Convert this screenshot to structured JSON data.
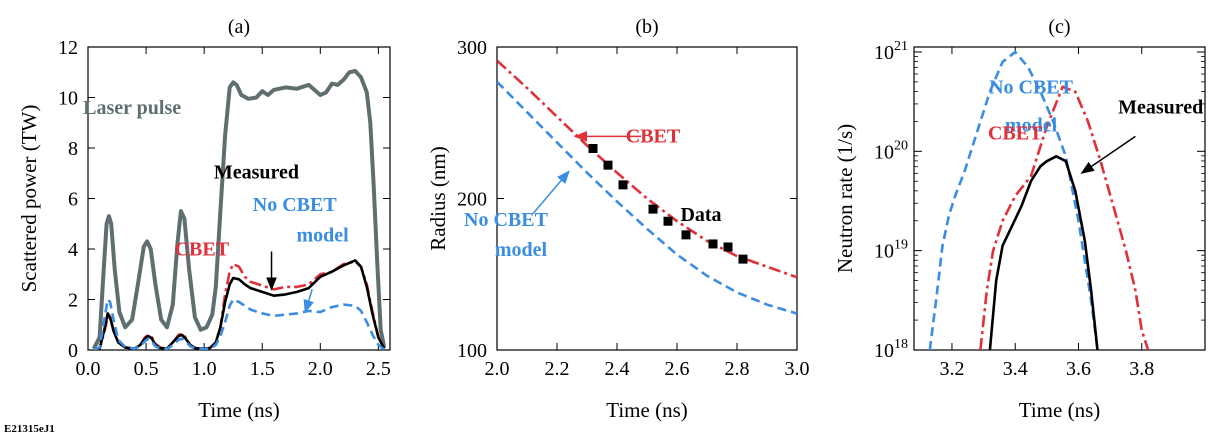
{
  "figure_id": "E21315eJ1",
  "colors": {
    "gray": "#5f6f6f",
    "red": "#e0303a",
    "blue": "#3a8de0",
    "black": "#000000"
  },
  "chart_data": [
    {
      "type": "line",
      "panel_label": "(a)",
      "xlabel": "Time (ns)",
      "ylabel": "Scattered power (TW)",
      "xlim": [
        0.0,
        2.6
      ],
      "ylim": [
        0,
        12
      ],
      "xticks": [
        "0.0",
        "0.5",
        "1.0",
        "1.5",
        "2.0",
        "2.5"
      ],
      "yticks": [
        "0",
        "2",
        "4",
        "6",
        "8",
        "10",
        "12"
      ],
      "series": [
        {
          "name": "Laser pulse",
          "color": "gray",
          "style": "solid",
          "x": [
            0.05,
            0.1,
            0.13,
            0.16,
            0.18,
            0.2,
            0.23,
            0.27,
            0.32,
            0.38,
            0.43,
            0.48,
            0.51,
            0.54,
            0.58,
            0.63,
            0.68,
            0.73,
            0.77,
            0.8,
            0.83,
            0.87,
            0.92,
            0.97,
            1.02,
            1.07,
            1.1,
            1.14,
            1.18,
            1.22,
            1.25,
            1.28,
            1.32,
            1.38,
            1.45,
            1.5,
            1.55,
            1.6,
            1.7,
            1.8,
            1.9,
            2.0,
            2.05,
            2.1,
            2.15,
            2.2,
            2.25,
            2.3,
            2.35,
            2.4,
            2.43,
            2.46,
            2.49,
            2.52,
            2.55
          ],
          "y": [
            0.05,
            0.5,
            2.8,
            5.0,
            5.3,
            5.0,
            3.2,
            1.5,
            0.9,
            1.2,
            2.6,
            4.1,
            4.3,
            4.0,
            2.6,
            1.2,
            0.9,
            1.8,
            4.2,
            5.5,
            5.2,
            3.2,
            1.3,
            0.8,
            0.9,
            1.4,
            2.5,
            5.5,
            8.5,
            10.4,
            10.6,
            10.5,
            10.1,
            9.95,
            10.0,
            10.25,
            10.1,
            10.3,
            10.4,
            10.35,
            10.5,
            10.1,
            10.2,
            10.55,
            10.5,
            10.7,
            11.0,
            11.05,
            10.8,
            10.2,
            9.0,
            6.5,
            3.5,
            0.8,
            0.1
          ]
        },
        {
          "name": "CBET",
          "color": "red",
          "style": "dash-dot",
          "x": [
            0.05,
            0.1,
            0.14,
            0.17,
            0.19,
            0.22,
            0.26,
            0.32,
            0.4,
            0.45,
            0.49,
            0.52,
            0.55,
            0.58,
            0.62,
            0.68,
            0.73,
            0.78,
            0.81,
            0.84,
            0.88,
            0.92,
            0.98,
            1.05,
            1.1,
            1.14,
            1.18,
            1.22,
            1.25,
            1.3,
            1.35,
            1.4,
            1.5,
            1.6,
            1.7,
            1.8,
            1.9,
            2.0,
            2.1,
            2.2,
            2.3,
            2.35,
            2.4,
            2.45,
            2.5,
            2.55
          ],
          "y": [
            0,
            0.05,
            0.7,
            1.3,
            1.25,
            0.8,
            0.3,
            0.1,
            0.05,
            0.2,
            0.5,
            0.6,
            0.5,
            0.25,
            0.1,
            0.05,
            0.3,
            0.6,
            0.65,
            0.5,
            0.2,
            0.08,
            0.05,
            0.08,
            0.3,
            0.9,
            2.2,
            3.1,
            3.4,
            3.3,
            2.9,
            2.7,
            2.55,
            2.4,
            2.5,
            2.5,
            2.6,
            3.0,
            3.1,
            3.4,
            3.5,
            3.3,
            2.6,
            1.5,
            0.5,
            0.05
          ]
        },
        {
          "name": "Measured",
          "color": "black",
          "style": "solid",
          "x": [
            0.05,
            0.1,
            0.14,
            0.17,
            0.19,
            0.22,
            0.26,
            0.32,
            0.4,
            0.45,
            0.49,
            0.52,
            0.55,
            0.58,
            0.62,
            0.68,
            0.73,
            0.78,
            0.81,
            0.84,
            0.88,
            0.92,
            0.98,
            1.05,
            1.1,
            1.14,
            1.18,
            1.22,
            1.25,
            1.3,
            1.35,
            1.4,
            1.5,
            1.6,
            1.7,
            1.8,
            1.9,
            2.0,
            2.1,
            2.2,
            2.3,
            2.35,
            2.4,
            2.45,
            2.5,
            2.55
          ],
          "y": [
            0,
            0.05,
            0.8,
            1.45,
            1.3,
            0.75,
            0.3,
            0.1,
            0.05,
            0.2,
            0.45,
            0.55,
            0.45,
            0.2,
            0.08,
            0.05,
            0.3,
            0.55,
            0.6,
            0.45,
            0.2,
            0.08,
            0.05,
            0.08,
            0.3,
            0.9,
            1.9,
            2.6,
            2.85,
            2.8,
            2.6,
            2.45,
            2.3,
            2.15,
            2.2,
            2.3,
            2.45,
            2.9,
            3.1,
            3.35,
            3.55,
            3.3,
            2.5,
            1.4,
            0.5,
            0.05
          ]
        },
        {
          "name": "No CBET model",
          "color": "blue",
          "style": "dashed",
          "x": [
            0.05,
            0.1,
            0.14,
            0.17,
            0.19,
            0.22,
            0.26,
            0.32,
            0.4,
            0.45,
            0.49,
            0.52,
            0.55,
            0.58,
            0.62,
            0.68,
            0.73,
            0.78,
            0.81,
            0.84,
            0.88,
            0.92,
            0.98,
            1.05,
            1.1,
            1.14,
            1.18,
            1.22,
            1.25,
            1.3,
            1.35,
            1.4,
            1.5,
            1.6,
            1.7,
            1.8,
            1.9,
            2.0,
            2.1,
            2.2,
            2.3,
            2.35,
            2.4,
            2.45,
            2.5,
            2.55
          ],
          "y": [
            0,
            0.1,
            1.2,
            2.0,
            1.9,
            1.2,
            0.4,
            0.12,
            0.05,
            0.15,
            0.35,
            0.45,
            0.35,
            0.15,
            0.06,
            0.04,
            0.2,
            0.4,
            0.45,
            0.35,
            0.15,
            0.06,
            0.04,
            0.06,
            0.2,
            0.55,
            1.1,
            1.75,
            2.0,
            1.9,
            1.75,
            1.6,
            1.45,
            1.35,
            1.4,
            1.45,
            1.55,
            1.5,
            1.7,
            1.8,
            1.75,
            1.55,
            1.1,
            0.6,
            0.2,
            0.02
          ]
        }
      ],
      "annotations": [
        {
          "text": "Laser pulse",
          "color": "gray",
          "x": 0.38,
          "y": 9.35
        },
        {
          "text": "Measured",
          "color": "black",
          "x": 1.45,
          "y": 6.8
        },
        {
          "text": "CBET",
          "color": "red",
          "x": 0.98,
          "y": 3.75
        },
        {
          "text": "No CBET",
          "color": "blue",
          "x": 1.78,
          "y": 5.5
        },
        {
          "text": "model",
          "color": "blue",
          "x": 2.02,
          "y": 4.3
        }
      ],
      "arrows": [
        {
          "color": "black",
          "from": [
            1.58,
            3.9
          ],
          "to": [
            1.58,
            2.4
          ]
        },
        {
          "color": "blue",
          "from": [
            1.93,
            2.4
          ],
          "to": [
            1.87,
            1.5
          ]
        }
      ]
    },
    {
      "type": "line",
      "panel_label": "(b)",
      "xlabel": "Time (ns)",
      "ylabel": "Radius (nm)",
      "xlim": [
        2.0,
        3.0
      ],
      "ylim": [
        100,
        300
      ],
      "xticks": [
        "2.0",
        "2.2",
        "2.4",
        "2.6",
        "2.8",
        "3.0"
      ],
      "yticks": [
        "100",
        "200",
        "300"
      ],
      "series": [
        {
          "name": "CBET",
          "color": "red",
          "style": "dash-dot",
          "x": [
            2.0,
            2.1,
            2.2,
            2.3,
            2.4,
            2.5,
            2.6,
            2.7,
            2.8,
            2.9,
            3.0
          ],
          "y": [
            291,
            273,
            254,
            235,
            217,
            200,
            185,
            172,
            162,
            155,
            148
          ]
        },
        {
          "name": "No CBET model",
          "color": "blue",
          "style": "dashed",
          "x": [
            2.0,
            2.1,
            2.2,
            2.3,
            2.4,
            2.5,
            2.6,
            2.7,
            2.8,
            2.9,
            3.0
          ],
          "y": [
            277,
            257,
            237,
            217,
            198,
            180,
            163,
            149,
            138,
            130,
            124
          ]
        },
        {
          "name": "Data",
          "color": "black",
          "style": "markers",
          "x": [
            2.32,
            2.37,
            2.42,
            2.52,
            2.57,
            2.63,
            2.72,
            2.77,
            2.82
          ],
          "y": [
            233,
            222,
            209,
            193,
            185,
            176,
            170,
            168,
            160
          ]
        }
      ],
      "annotations": [
        {
          "text": "CBET",
          "color": "red",
          "x": 2.52,
          "y": 237
        },
        {
          "text": "Data",
          "color": "black",
          "x": 2.68,
          "y": 185
        },
        {
          "text": "No CBET",
          "color": "blue",
          "x": 2.03,
          "y": 182
        },
        {
          "text": "model",
          "color": "blue",
          "x": 2.08,
          "y": 162
        }
      ],
      "arrows": [
        {
          "color": "red",
          "from": [
            2.48,
            241
          ],
          "to": [
            2.26,
            241
          ]
        },
        {
          "color": "blue",
          "from": [
            2.12,
            190
          ],
          "to": [
            2.24,
            218
          ]
        }
      ]
    },
    {
      "type": "line",
      "panel_label": "(c)",
      "xlabel": "Time (ns)",
      "ylabel": "Neutron rate (1/s)",
      "xlim": [
        3.08,
        4.0
      ],
      "ylim": [
        18,
        21.05
      ],
      "yscale": "log",
      "xticks": [
        "3.2",
        "3.4",
        "3.6",
        "3.8"
      ],
      "yticks": [
        {
          "base": "10",
          "exp": "18",
          "log": 18
        },
        {
          "base": "10",
          "exp": "19",
          "log": 19
        },
        {
          "base": "10",
          "exp": "20",
          "log": 20
        },
        {
          "base": "10",
          "exp": "21",
          "log": 21
        }
      ],
      "series": [
        {
          "name": "No CBET model",
          "color": "blue",
          "style": "dashed",
          "x": [
            3.13,
            3.15,
            3.17,
            3.19,
            3.21,
            3.24,
            3.28,
            3.32,
            3.36,
            3.4,
            3.44,
            3.48,
            3.52,
            3.56,
            3.6,
            3.64,
            3.66
          ],
          "y": [
            18.0,
            18.5,
            19.05,
            19.35,
            19.55,
            19.8,
            20.2,
            20.6,
            20.9,
            21.0,
            20.85,
            20.6,
            20.3,
            19.95,
            19.3,
            18.5,
            18.0
          ]
        },
        {
          "name": "CBET",
          "color": "red",
          "style": "dash-dot",
          "x": [
            3.29,
            3.31,
            3.33,
            3.36,
            3.4,
            3.45,
            3.5,
            3.55,
            3.59,
            3.63,
            3.67,
            3.71,
            3.75,
            3.78,
            3.8,
            3.82
          ],
          "y": [
            18.0,
            18.6,
            19.0,
            19.3,
            19.55,
            19.75,
            20.25,
            20.65,
            20.6,
            20.3,
            19.9,
            19.45,
            19.0,
            18.6,
            18.2,
            18.0
          ]
        },
        {
          "name": "Measured",
          "color": "black",
          "style": "solid",
          "x": [
            3.32,
            3.34,
            3.36,
            3.39,
            3.42,
            3.45,
            3.48,
            3.5,
            3.53,
            3.56,
            3.59,
            3.62,
            3.64,
            3.66
          ],
          "y": [
            18.0,
            18.7,
            19.05,
            19.25,
            19.45,
            19.7,
            19.85,
            19.9,
            19.95,
            19.9,
            19.6,
            19.1,
            18.6,
            18.0
          ]
        }
      ],
      "annotations": [
        {
          "text": "No CBET",
          "color": "blue",
          "x": 3.45,
          "y": 20.58
        },
        {
          "text": "model",
          "color": "blue",
          "x": 3.45,
          "y": 20.2
        },
        {
          "text": "CBET",
          "color": "red",
          "x": 3.4,
          "y": 20.12
        },
        {
          "text": "Measured",
          "color": "black",
          "x": 3.86,
          "y": 20.38
        }
      ],
      "arrows": [
        {
          "color": "black",
          "from": [
            3.78,
            20.15
          ],
          "to": [
            3.61,
            19.78
          ]
        }
      ]
    }
  ]
}
